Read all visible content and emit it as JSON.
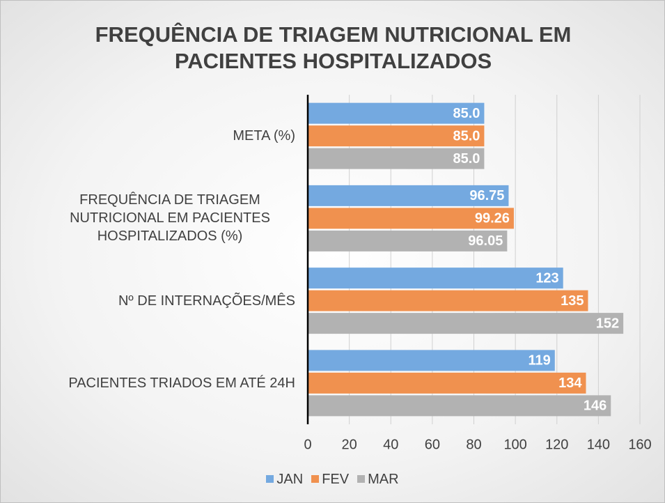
{
  "chart_data": {
    "type": "bar",
    "orientation": "horizontal",
    "title": "FREQUÊNCIA DE TRIAGEM NUTRICIONAL EM PACIENTES HOSPITALIZADOS",
    "categories": [
      "META (%)",
      "FREQUÊNCIA DE TRIAGEM NUTRICIONAL EM PACIENTES HOSPITALIZADOS (%)",
      "Nº DE INTERNAÇÕES/MÊS",
      "PACIENTES TRIADOS EM ATÉ 24H"
    ],
    "series": [
      {
        "name": "JAN",
        "color": "#74a9e0",
        "values": [
          85,
          96.75,
          123,
          119
        ],
        "value_labels": [
          "85.0",
          "96.75",
          "123",
          "119"
        ]
      },
      {
        "name": "FEV",
        "color": "#f0914f",
        "values": [
          85,
          99.26,
          135,
          134
        ],
        "value_labels": [
          "85.0",
          "99.26",
          "135",
          "134"
        ]
      },
      {
        "name": "MAR",
        "color": "#b2b2b2",
        "values": [
          85,
          96.05,
          152,
          146
        ],
        "value_labels": [
          "85.0",
          "96.05",
          "152",
          "146"
        ]
      }
    ],
    "xlim": [
      0,
      160
    ],
    "xticks": [
      0,
      20,
      40,
      60,
      80,
      100,
      120,
      140,
      160
    ],
    "grid": true,
    "legend": "bottom"
  }
}
